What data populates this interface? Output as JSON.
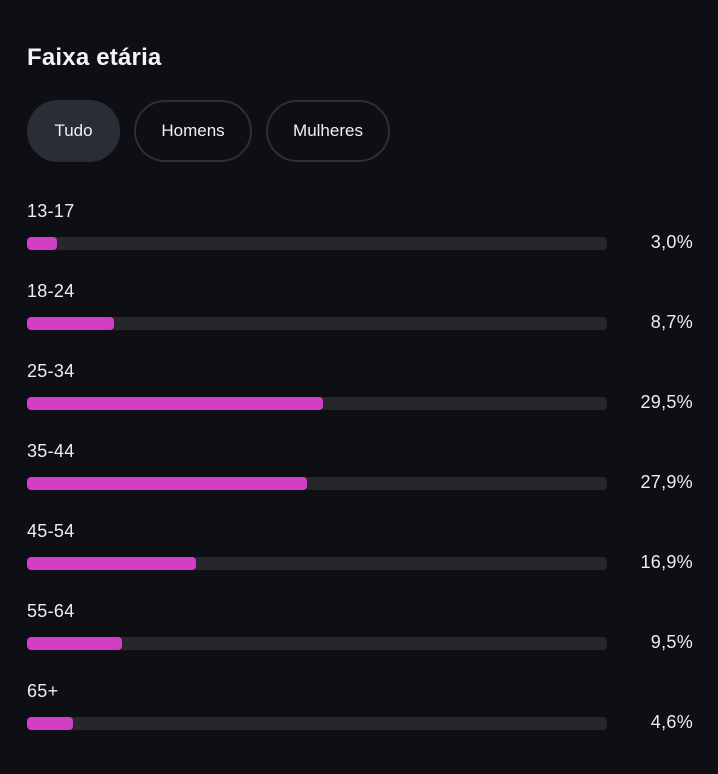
{
  "card": {
    "title": "Faixa etária"
  },
  "tabs": [
    {
      "label": "Tudo",
      "active": true
    },
    {
      "label": "Homens",
      "active": false
    },
    {
      "label": "Mulheres",
      "active": false
    }
  ],
  "colors": {
    "accent": "#d23fc6",
    "track": "#25272d",
    "background": "#0d0f14",
    "active_tab": "#2a2d35"
  },
  "age_groups": [
    {
      "label": "13-17",
      "percent_text": "3,0%",
      "value": 3.0
    },
    {
      "label": "18-24",
      "percent_text": "8,7%",
      "value": 8.7
    },
    {
      "label": "25-34",
      "percent_text": "29,5%",
      "value": 29.5
    },
    {
      "label": "35-44",
      "percent_text": "27,9%",
      "value": 27.9
    },
    {
      "label": "45-54",
      "percent_text": "16,9%",
      "value": 16.9
    },
    {
      "label": "55-64",
      "percent_text": "9,5%",
      "value": 9.5
    },
    {
      "label": "65+",
      "percent_text": "4,6%",
      "value": 4.6
    }
  ]
}
